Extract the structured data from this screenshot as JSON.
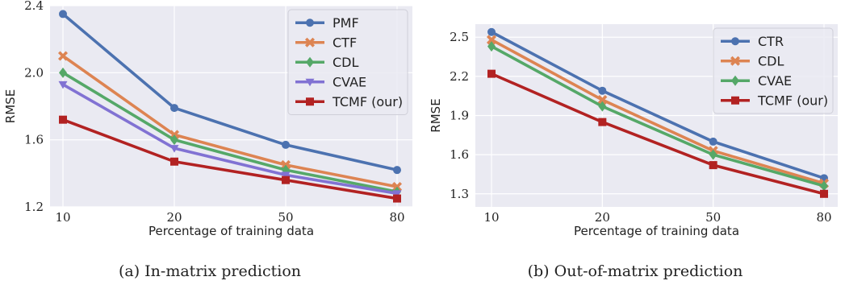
{
  "chart_data": [
    {
      "type": "line",
      "categories": [
        "10",
        "20",
        "50",
        "80"
      ],
      "xlabel": "Percentage of training data",
      "ylabel": "RMSE",
      "ylim": [
        1.2,
        2.4
      ],
      "yticks": [
        "1.2",
        "1.6",
        "2.0",
        "2.4"
      ],
      "grid": true,
      "legend": "top-right",
      "caption": "(a) In-matrix prediction",
      "series": [
        {
          "name": "PMF",
          "values": [
            2.35,
            1.79,
            1.57,
            1.42
          ],
          "color": "#4c72b0",
          "marker": "circle"
        },
        {
          "name": "CTF",
          "values": [
            2.1,
            1.63,
            1.45,
            1.32
          ],
          "color": "#dd8452",
          "marker": "x"
        },
        {
          "name": "CDL",
          "values": [
            2.0,
            1.6,
            1.42,
            1.29
          ],
          "color": "#55a868",
          "marker": "diamond"
        },
        {
          "name": "CVAE",
          "values": [
            1.93,
            1.55,
            1.39,
            1.28
          ],
          "color": "#8172d3",
          "marker": "triangle-down"
        },
        {
          "name": "TCMF (our)",
          "values": [
            1.72,
            1.47,
            1.36,
            1.25
          ],
          "color": "#b22222",
          "marker": "square"
        }
      ]
    },
    {
      "type": "line",
      "categories": [
        "10",
        "20",
        "50",
        "80"
      ],
      "xlabel": "Percentage of training data",
      "ylabel": "RMSE",
      "ylim": [
        1.2,
        2.6
      ],
      "yticks": [
        "1.3",
        "1.6",
        "1.9",
        "2.2",
        "2.5"
      ],
      "grid": true,
      "legend": "top-right",
      "caption": "(b) Out-of-matrix prediction",
      "series": [
        {
          "name": "CTR",
          "values": [
            2.54,
            2.09,
            1.7,
            1.42
          ],
          "color": "#4c72b0",
          "marker": "circle"
        },
        {
          "name": "CDL",
          "values": [
            2.48,
            2.02,
            1.63,
            1.38
          ],
          "color": "#dd8452",
          "marker": "x"
        },
        {
          "name": "CVAE",
          "values": [
            2.43,
            1.97,
            1.6,
            1.36
          ],
          "color": "#55a868",
          "marker": "diamond"
        },
        {
          "name": "TCMF (our)",
          "values": [
            2.22,
            1.85,
            1.52,
            1.3
          ],
          "color": "#b22222",
          "marker": "square"
        }
      ]
    }
  ]
}
